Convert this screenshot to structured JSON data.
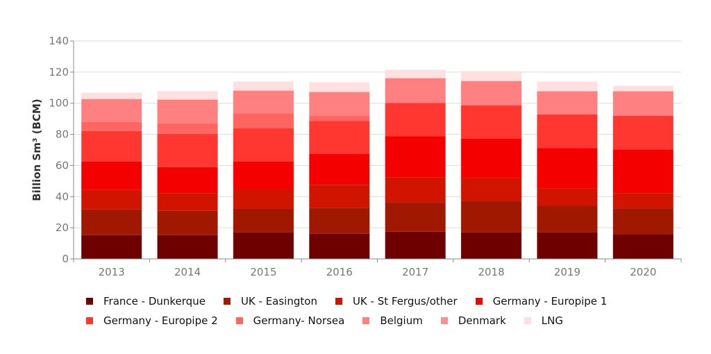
{
  "chart_data": {
    "type": "bar",
    "stacked": true,
    "title": "",
    "xlabel": "",
    "ylabel": "Billion Sm³ (BCM)",
    "ylim": [
      0,
      140
    ],
    "yticks": [
      0,
      20,
      40,
      60,
      80,
      100,
      120,
      140
    ],
    "grid": true,
    "legend": "bottom",
    "categories": [
      "2013",
      "2014",
      "2015",
      "2016",
      "2017",
      "2018",
      "2019",
      "2020"
    ],
    "series": [
      {
        "name": "France - Dunkerque",
        "color": "#6e0000",
        "values": [
          15.3,
          15.3,
          17.1,
          16.2,
          17.5,
          17.1,
          17.1,
          15.8
        ]
      },
      {
        "name": "UK - Easington",
        "color": "#a01800",
        "values": [
          16.5,
          15.6,
          15.2,
          16.5,
          18.8,
          20.1,
          17.0,
          16.5
        ]
      },
      {
        "name": "UK - St Fergus/other",
        "color": "#d01400",
        "values": [
          12.5,
          11.3,
          12.5,
          14.9,
          16.0,
          14.7,
          11.1,
          9.9
        ]
      },
      {
        "name": "Germany - Europipe 1",
        "color": "#f50000",
        "values": [
          18.3,
          16.8,
          17.8,
          19.9,
          26.4,
          25.4,
          25.9,
          28.0
        ]
      },
      {
        "name": "Germany - Europipe 2",
        "color": "#ff3730",
        "values": [
          19.6,
          21.4,
          21.4,
          21.0,
          21.4,
          21.4,
          21.8,
          21.8
        ]
      },
      {
        "name": "Germany- Norsea",
        "color": "#ff6661",
        "values": [
          5.8,
          6.7,
          9.4,
          3.7,
          0,
          0,
          0,
          0
        ]
      },
      {
        "name": "Belgium",
        "color": "#ff8080",
        "values": [
          14.7,
          15.2,
          14.7,
          15.0,
          16.0,
          15.6,
          14.8,
          15.7
        ]
      },
      {
        "name": "Denmark",
        "color": "#ff9090",
        "values": [
          0,
          0,
          0,
          0,
          0,
          0,
          0,
          0
        ]
      },
      {
        "name": "LNG",
        "color": "#ffe0e0",
        "values": [
          4.1,
          5.4,
          5.8,
          6.3,
          5.4,
          6.3,
          6.2,
          3.5
        ]
      }
    ]
  }
}
